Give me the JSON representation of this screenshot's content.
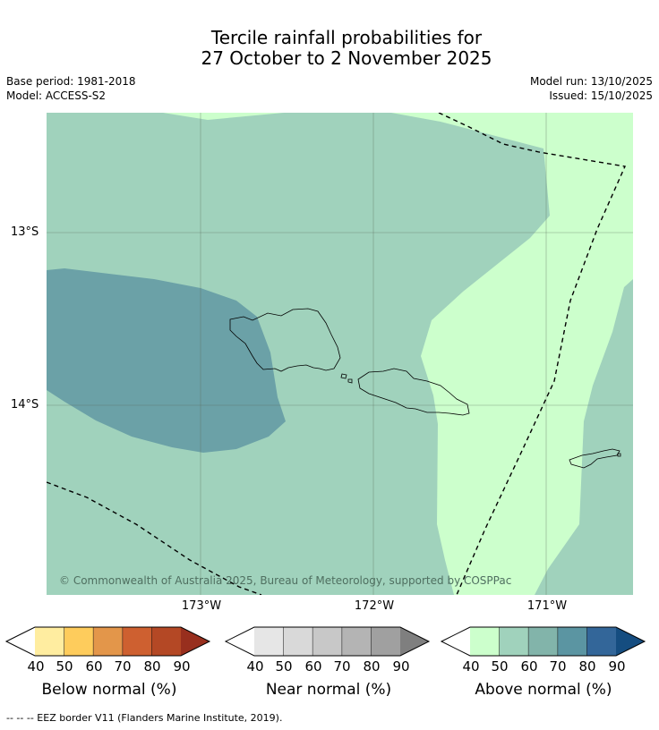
{
  "title_line1": "Tercile rainfall probabilities for",
  "title_line2": "27 October to 2 November 2025",
  "meta": {
    "base_period": "Base period: 1981-2018",
    "model": "Model: ACCESS-S2",
    "model_run": "Model run: 13/10/2025",
    "issued": "Issued: 15/10/2025"
  },
  "map": {
    "copyright": "© Commonwealth of Australia 2025, Bureau of Meteorology, supported by COSPPac",
    "lat_labels": [
      "13°S",
      "14°S"
    ],
    "lon_labels": [
      "173°W",
      "172°W",
      "171°W"
    ],
    "colors": {
      "above_40_50": "#ccffcc",
      "above_50_60": "#a0d2bc",
      "above_60_70": "#6ba1a7",
      "border": "#000000"
    }
  },
  "legends": [
    {
      "name": "Below normal (%)",
      "colors": [
        "#ffffff",
        "#ffeda0",
        "#fecc5c",
        "#e3964a",
        "#ce6030",
        "#b44825",
        "#982f1e"
      ]
    },
    {
      "name": "Near normal (%)",
      "colors": [
        "#ffffff",
        "#e6e6e6",
        "#d9d9d9",
        "#c8c8c8",
        "#b4b4b4",
        "#a0a0a0",
        "#7f7f7f"
      ]
    },
    {
      "name": "Above normal (%)",
      "colors": [
        "#ffffff",
        "#ccffcc",
        "#a0d2bc",
        "#82b4aa",
        "#5b95a2",
        "#336699",
        "#154d80"
      ]
    }
  ],
  "ticks": [
    "40",
    "50",
    "60",
    "70",
    "80",
    "90"
  ],
  "footnote": "--  --  -- EEZ border V11 (Flanders Marine Institute, 2019)."
}
